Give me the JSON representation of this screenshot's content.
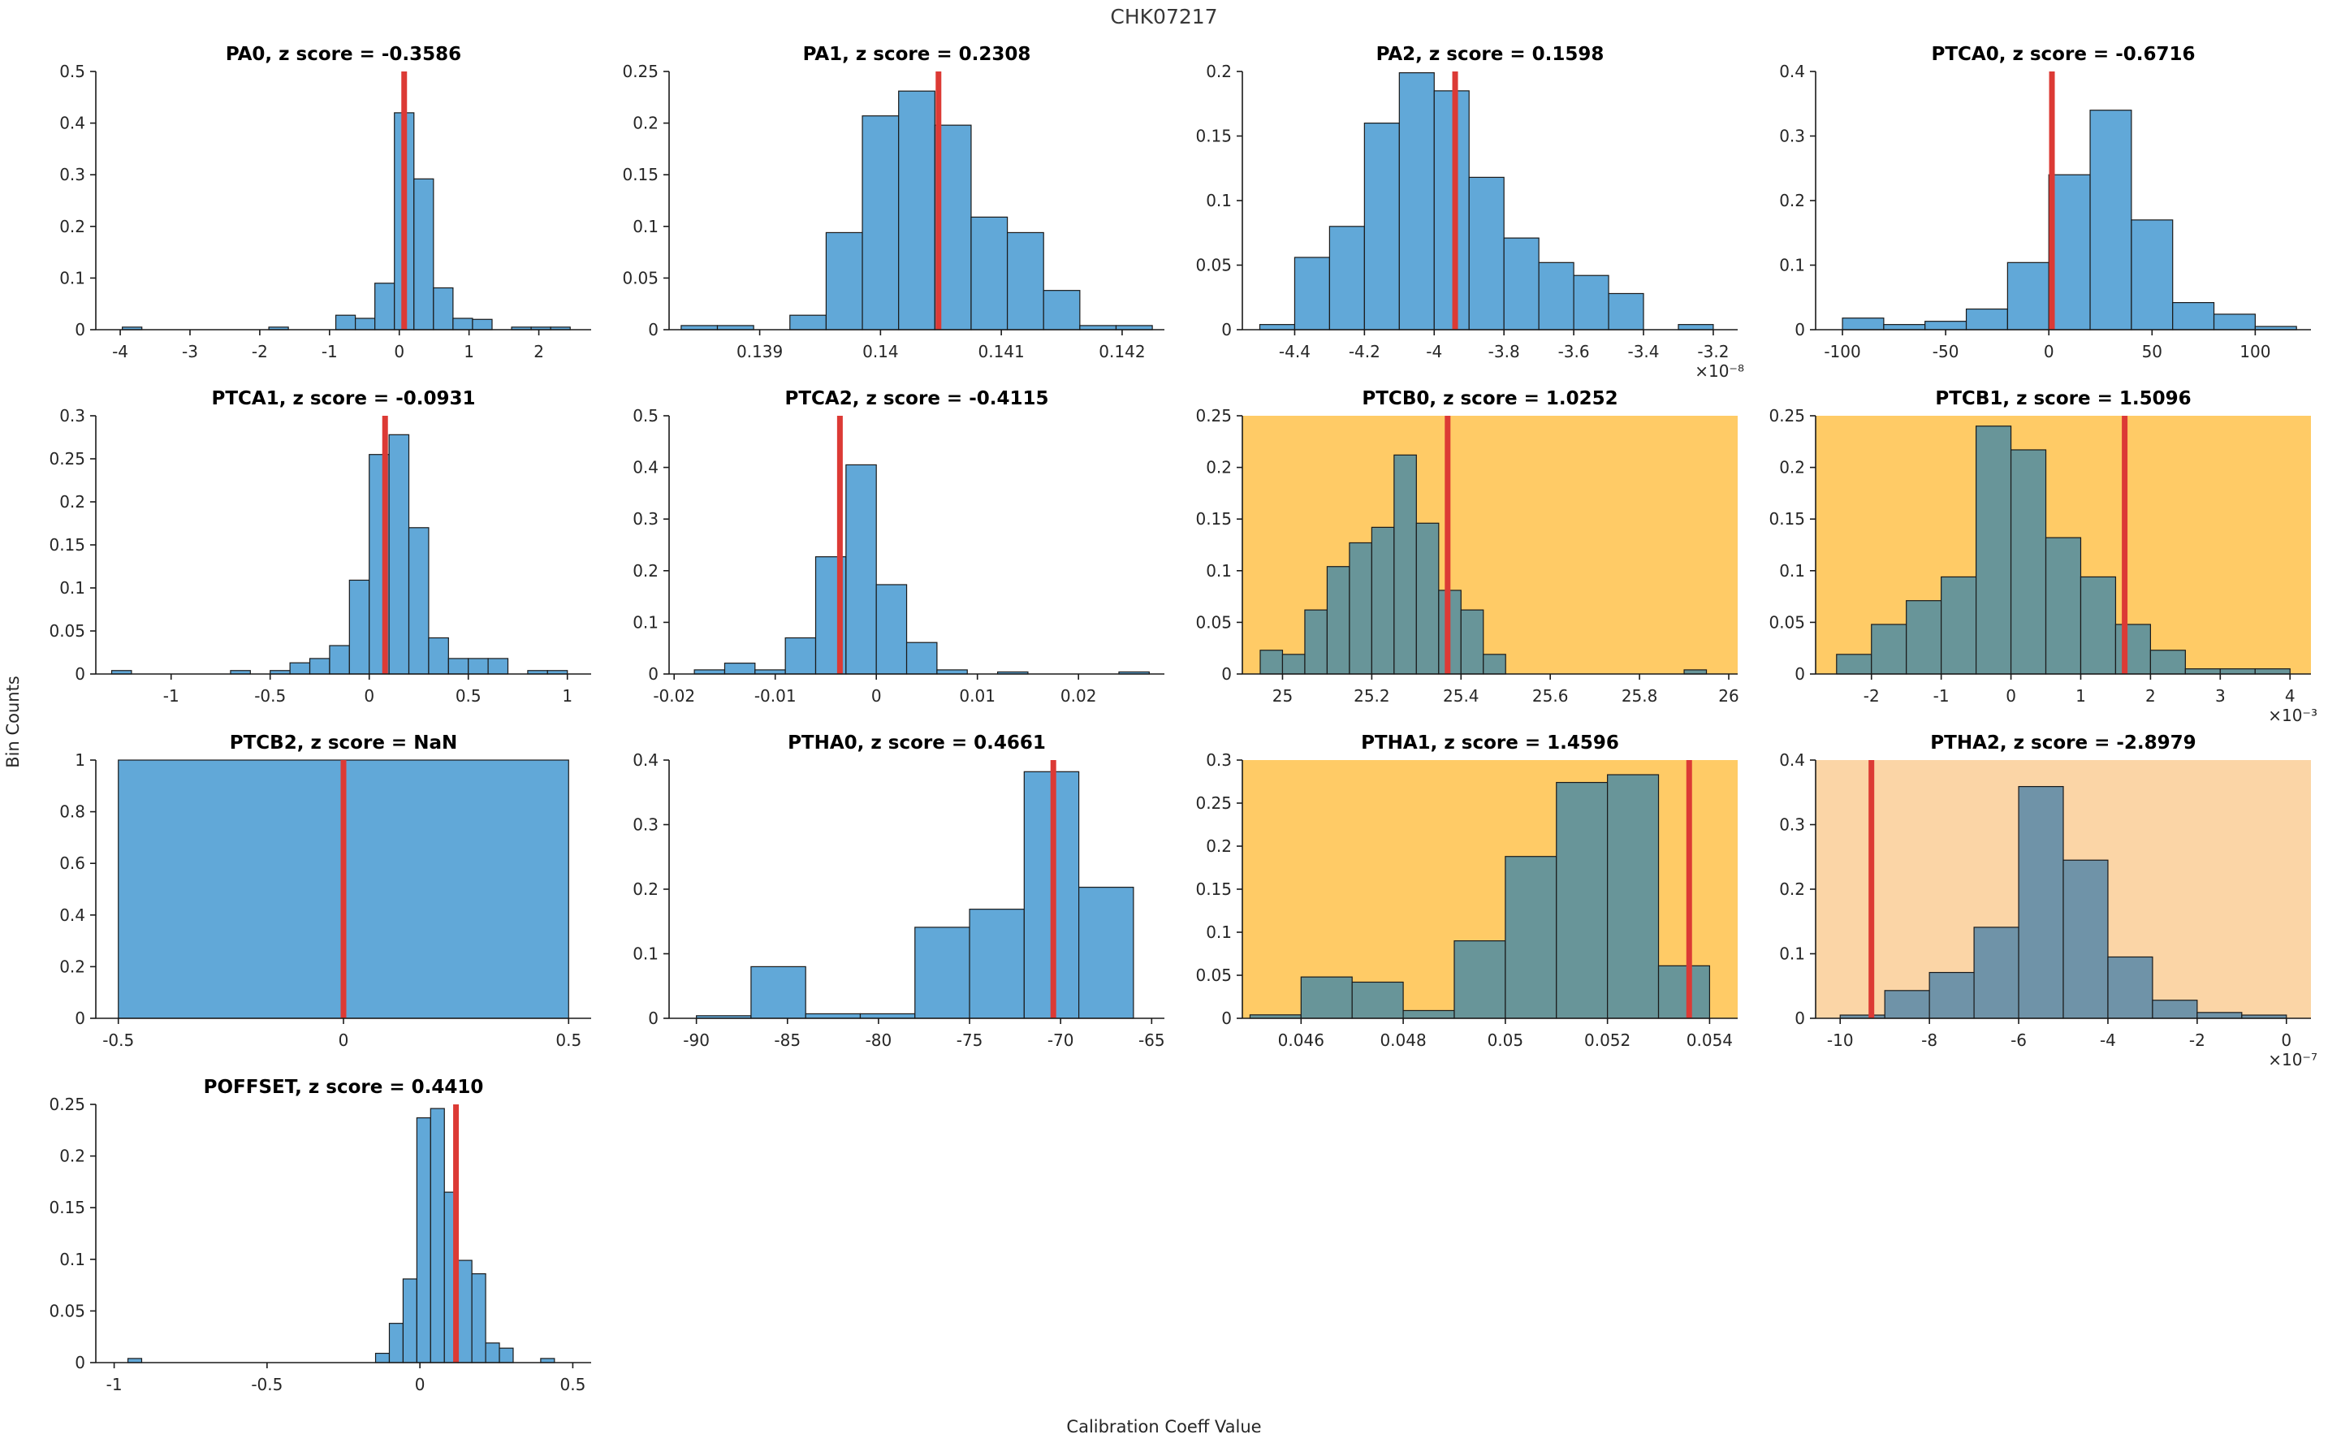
{
  "figure": {
    "title": "CHK07217",
    "ylabel": "Bin Counts",
    "xlabel": "Calibration Coeff Value"
  },
  "colors": {
    "bar_blue": "#61a8d8",
    "bar_teal": "#689599",
    "bar_steel": "#6f93a8",
    "bg_white": "#ffffff",
    "bg_orange": "#ffcb66",
    "bg_peach": "#fbd5a6",
    "red_line": "#dc3a35",
    "axis": "#1a1a1a",
    "text": "#262626",
    "title_text": "#000000"
  },
  "chart_data": [
    {
      "id": "PA0",
      "type": "bar",
      "title": "PA0, z score = -0.3586",
      "bg": "#ffffff",
      "bar_color": "#61a8d8",
      "marker_x": 0.07,
      "xlim": [
        -4.35,
        2.75
      ],
      "ylim": [
        0,
        0.5
      ],
      "multiplier": "",
      "xtick_vals": [
        -4,
        -3,
        -2,
        -1,
        0,
        1,
        2
      ],
      "xtick_labels": [
        "-4",
        "-3",
        "-2",
        "-1",
        "0",
        "1",
        "2"
      ],
      "ytick_vals": [
        0,
        0.1,
        0.2,
        0.3,
        0.4,
        0.5
      ],
      "ytick_labels": [
        "0",
        "0.1",
        "0.2",
        "0.3",
        "0.4",
        "0.5"
      ],
      "bins": [
        [
          -3.97,
          -3.69,
          0.005
        ],
        [
          -1.87,
          -1.59,
          0.005
        ],
        [
          -0.91,
          -0.63,
          0.028
        ],
        [
          -0.63,
          -0.35,
          0.022
        ],
        [
          -0.35,
          -0.07,
          0.09
        ],
        [
          -0.07,
          0.21,
          0.42
        ],
        [
          0.21,
          0.49,
          0.292
        ],
        [
          0.49,
          0.77,
          0.081
        ],
        [
          0.77,
          1.05,
          0.022
        ],
        [
          1.05,
          1.33,
          0.02
        ],
        [
          1.61,
          1.89,
          0.005
        ],
        [
          1.89,
          2.17,
          0.005
        ],
        [
          2.17,
          2.45,
          0.005
        ]
      ]
    },
    {
      "id": "PA1",
      "type": "bar",
      "title": "PA1, z score = 0.2308",
      "bg": "#ffffff",
      "bar_color": "#61a8d8",
      "marker_x": 0.14048,
      "xlim": [
        0.13825,
        0.14235
      ],
      "ylim": [
        0,
        0.25
      ],
      "multiplier": "",
      "xtick_vals": [
        0.139,
        0.14,
        0.141,
        0.142
      ],
      "xtick_labels": [
        "0.139",
        "0.14",
        "0.141",
        "0.142"
      ],
      "ytick_vals": [
        0,
        0.05,
        0.1,
        0.15,
        0.2,
        0.25
      ],
      "ytick_labels": [
        "0",
        "0.05",
        "0.1",
        "0.15",
        "0.2",
        "0.25"
      ],
      "bins": [
        [
          0.13835,
          0.13865,
          0.004
        ],
        [
          0.13865,
          0.13895,
          0.004
        ],
        [
          0.13925,
          0.13955,
          0.014
        ],
        [
          0.13955,
          0.13985,
          0.094
        ],
        [
          0.13985,
          0.14015,
          0.207
        ],
        [
          0.14015,
          0.14045,
          0.231
        ],
        [
          0.14045,
          0.14075,
          0.198
        ],
        [
          0.14075,
          0.14105,
          0.109
        ],
        [
          0.14105,
          0.14135,
          0.094
        ],
        [
          0.14135,
          0.14165,
          0.038
        ],
        [
          0.14165,
          0.14195,
          0.004
        ],
        [
          0.14195,
          0.14225,
          0.004
        ]
      ]
    },
    {
      "id": "PA2",
      "type": "bar",
      "title": "PA2, z score = 0.1598",
      "bg": "#ffffff",
      "bar_color": "#61a8d8",
      "marker_x": -3.94,
      "xlim": [
        -4.55,
        -3.13
      ],
      "ylim": [
        0,
        0.2
      ],
      "multiplier": "×10⁻⁸",
      "xtick_vals": [
        -4.4,
        -4.2,
        -4,
        -3.8,
        -3.6,
        -3.4,
        -3.2
      ],
      "xtick_labels": [
        "-4.4",
        "-4.2",
        "-4",
        "-3.8",
        "-3.6",
        "-3.4",
        "-3.2"
      ],
      "ytick_vals": [
        0,
        0.05,
        0.1,
        0.15,
        0.2
      ],
      "ytick_labels": [
        "0",
        "0.05",
        "0.1",
        "0.15",
        "0.2"
      ],
      "bins": [
        [
          -4.5,
          -4.4,
          0.004
        ],
        [
          -4.4,
          -4.3,
          0.056
        ],
        [
          -4.3,
          -4.2,
          0.08
        ],
        [
          -4.2,
          -4.1,
          0.16
        ],
        [
          -4.1,
          -4.0,
          0.199
        ],
        [
          -4.0,
          -3.9,
          0.185
        ],
        [
          -3.9,
          -3.8,
          0.118
        ],
        [
          -3.8,
          -3.7,
          0.071
        ],
        [
          -3.7,
          -3.6,
          0.052
        ],
        [
          -3.6,
          -3.5,
          0.042
        ],
        [
          -3.5,
          -3.4,
          0.028
        ],
        [
          -3.3,
          -3.2,
          0.004
        ]
      ]
    },
    {
      "id": "PTCA0",
      "type": "bar",
      "title": "PTCA0, z score = -0.6716",
      "bg": "#ffffff",
      "bar_color": "#61a8d8",
      "marker_x": 1.5,
      "xlim": [
        -113,
        127
      ],
      "ylim": [
        0,
        0.4
      ],
      "multiplier": "",
      "xtick_vals": [
        -100,
        -50,
        0,
        50,
        100
      ],
      "xtick_labels": [
        "-100",
        "-50",
        "0",
        "50",
        "100"
      ],
      "ytick_vals": [
        0,
        0.1,
        0.2,
        0.3,
        0.4
      ],
      "ytick_labels": [
        "0",
        "0.1",
        "0.2",
        "0.3",
        "0.4"
      ],
      "bins": [
        [
          -100,
          -80,
          0.018
        ],
        [
          -80,
          -60,
          0.008
        ],
        [
          -60,
          -40,
          0.013
        ],
        [
          -40,
          -20,
          0.032
        ],
        [
          -20,
          0,
          0.104
        ],
        [
          0,
          20,
          0.24
        ],
        [
          20,
          40,
          0.34
        ],
        [
          40,
          60,
          0.17
        ],
        [
          60,
          80,
          0.042
        ],
        [
          80,
          100,
          0.024
        ],
        [
          100,
          120,
          0.005
        ]
      ]
    },
    {
      "id": "PTCA1",
      "type": "bar",
      "title": "PTCA1, z score = -0.0931",
      "bg": "#ffffff",
      "bar_color": "#61a8d8",
      "marker_x": 0.08,
      "xlim": [
        -1.38,
        1.12
      ],
      "ylim": [
        0,
        0.3
      ],
      "multiplier": "",
      "xtick_vals": [
        -1,
        -0.5,
        0,
        0.5,
        1
      ],
      "xtick_labels": [
        "-1",
        "-0.5",
        "0",
        "0.5",
        "1"
      ],
      "ytick_vals": [
        0,
        0.05,
        0.1,
        0.15,
        0.2,
        0.25,
        0.3
      ],
      "ytick_labels": [
        "0",
        "0.05",
        "0.1",
        "0.15",
        "0.2",
        "0.25",
        "0.3"
      ],
      "bins": [
        [
          -1.3,
          -1.2,
          0.004
        ],
        [
          -0.7,
          -0.6,
          0.004
        ],
        [
          -0.5,
          -0.4,
          0.004
        ],
        [
          -0.4,
          -0.3,
          0.013
        ],
        [
          -0.3,
          -0.2,
          0.018
        ],
        [
          -0.2,
          -0.1,
          0.033
        ],
        [
          -0.1,
          0,
          0.109
        ],
        [
          0,
          0.1,
          0.255
        ],
        [
          0.1,
          0.2,
          0.278
        ],
        [
          0.2,
          0.3,
          0.17
        ],
        [
          0.3,
          0.4,
          0.042
        ],
        [
          0.4,
          0.5,
          0.018
        ],
        [
          0.5,
          0.6,
          0.018
        ],
        [
          0.6,
          0.7,
          0.018
        ],
        [
          0.8,
          0.9,
          0.004
        ],
        [
          0.9,
          1.0,
          0.004
        ]
      ]
    },
    {
      "id": "PTCA2",
      "type": "bar",
      "title": "PTCA2, z score = -0.4115",
      "bg": "#ffffff",
      "bar_color": "#61a8d8",
      "marker_x": -0.0036,
      "xlim": [
        -0.0205,
        0.0285
      ],
      "ylim": [
        0,
        0.5
      ],
      "multiplier": "",
      "xtick_vals": [
        -0.02,
        -0.01,
        0,
        0.01,
        0.02
      ],
      "xtick_labels": [
        "-0.02",
        "-0.01",
        "0",
        "0.01",
        "0.02"
      ],
      "ytick_vals": [
        0,
        0.1,
        0.2,
        0.3,
        0.4,
        0.5
      ],
      "ytick_labels": [
        "0",
        "0.1",
        "0.2",
        "0.3",
        "0.4",
        "0.5"
      ],
      "bins": [
        [
          -0.018,
          -0.015,
          0.008
        ],
        [
          -0.015,
          -0.012,
          0.021
        ],
        [
          -0.012,
          -0.009,
          0.008
        ],
        [
          -0.009,
          -0.006,
          0.07
        ],
        [
          -0.006,
          -0.003,
          0.227
        ],
        [
          -0.003,
          0,
          0.405
        ],
        [
          0,
          0.003,
          0.173
        ],
        [
          0.003,
          0.006,
          0.061
        ],
        [
          0.006,
          0.009,
          0.008
        ],
        [
          0.012,
          0.015,
          0.004
        ],
        [
          0.024,
          0.027,
          0.004
        ]
      ]
    },
    {
      "id": "PTCB0",
      "type": "bar",
      "title": "PTCB0, z score = 1.0252",
      "bg": "#ffcb66",
      "bar_color": "#689599",
      "marker_x": 25.37,
      "xlim": [
        24.91,
        26.02
      ],
      "ylim": [
        0,
        0.25
      ],
      "multiplier": "",
      "xtick_vals": [
        25,
        25.2,
        25.4,
        25.6,
        25.8,
        26
      ],
      "xtick_labels": [
        "25",
        "25.2",
        "25.4",
        "25.6",
        "25.8",
        "26"
      ],
      "ytick_vals": [
        0,
        0.05,
        0.1,
        0.15,
        0.2,
        0.25
      ],
      "ytick_labels": [
        "0",
        "0.05",
        "0.1",
        "0.15",
        "0.2",
        "0.25"
      ],
      "bins": [
        [
          24.95,
          25.0,
          0.023
        ],
        [
          25.0,
          25.05,
          0.019
        ],
        [
          25.05,
          25.1,
          0.062
        ],
        [
          25.1,
          25.15,
          0.104
        ],
        [
          25.15,
          25.2,
          0.127
        ],
        [
          25.2,
          25.25,
          0.142
        ],
        [
          25.25,
          25.3,
          0.212
        ],
        [
          25.3,
          25.35,
          0.146
        ],
        [
          25.35,
          25.4,
          0.081
        ],
        [
          25.4,
          25.45,
          0.062
        ],
        [
          25.45,
          25.5,
          0.019
        ],
        [
          25.9,
          25.95,
          0.004
        ]
      ]
    },
    {
      "id": "PTCB1",
      "type": "bar",
      "title": "PTCB1, z score = 1.5096",
      "bg": "#ffcb66",
      "bar_color": "#689599",
      "marker_x": 1.63,
      "xlim": [
        -2.8,
        4.3
      ],
      "ylim": [
        0,
        0.25
      ],
      "multiplier": "×10⁻³",
      "xtick_vals": [
        -2,
        -1,
        0,
        1,
        2,
        3,
        4
      ],
      "xtick_labels": [
        "-2",
        "-1",
        "0",
        "1",
        "2",
        "3",
        "4"
      ],
      "ytick_vals": [
        0,
        0.05,
        0.1,
        0.15,
        0.2,
        0.25
      ],
      "ytick_labels": [
        "0",
        "0.05",
        "0.1",
        "0.15",
        "0.2",
        "0.25"
      ],
      "bins": [
        [
          -2.5,
          -2,
          0.019
        ],
        [
          -2,
          -1.5,
          0.048
        ],
        [
          -1.5,
          -1,
          0.071
        ],
        [
          -1,
          -0.5,
          0.094
        ],
        [
          -0.5,
          0,
          0.24
        ],
        [
          0,
          0.5,
          0.217
        ],
        [
          0.5,
          1,
          0.132
        ],
        [
          1,
          1.5,
          0.094
        ],
        [
          1.5,
          2,
          0.048
        ],
        [
          2,
          2.5,
          0.023
        ],
        [
          2.5,
          3,
          0.005
        ],
        [
          3,
          3.5,
          0.005
        ],
        [
          3.5,
          4,
          0.005
        ]
      ]
    },
    {
      "id": "PTCB2",
      "type": "bar",
      "title": "PTCB2, z score = NaN",
      "bg": "#ffffff",
      "bar_color": "#61a8d8",
      "marker_x": 0,
      "xlim": [
        -0.55,
        0.55
      ],
      "ylim": [
        0,
        1
      ],
      "multiplier": "",
      "xtick_vals": [
        -0.5,
        0,
        0.5
      ],
      "xtick_labels": [
        "-0.5",
        "0",
        "0.5"
      ],
      "ytick_vals": [
        0,
        0.2,
        0.4,
        0.6,
        0.8,
        1
      ],
      "ytick_labels": [
        "0",
        "0.2",
        "0.4",
        "0.6",
        "0.8",
        "1"
      ],
      "bins": [
        [
          -0.5,
          0.5,
          1
        ]
      ]
    },
    {
      "id": "PTHA0",
      "type": "bar",
      "title": "PTHA0, z score = 0.4661",
      "bg": "#ffffff",
      "bar_color": "#61a8d8",
      "marker_x": -70.4,
      "xlim": [
        -91.5,
        -64.3
      ],
      "ylim": [
        0,
        0.4
      ],
      "multiplier": "",
      "xtick_vals": [
        -90,
        -85,
        -80,
        -75,
        -70,
        -65
      ],
      "xtick_labels": [
        "-90",
        "-85",
        "-80",
        "-75",
        "-70",
        "-65"
      ],
      "ytick_vals": [
        0,
        0.1,
        0.2,
        0.3,
        0.4
      ],
      "ytick_labels": [
        "0",
        "0.1",
        "0.2",
        "0.3",
        "0.4"
      ],
      "bins": [
        [
          -90,
          -87,
          0.004
        ],
        [
          -87,
          -84,
          0.08
        ],
        [
          -84,
          -81,
          0.007
        ],
        [
          -81,
          -78,
          0.007
        ],
        [
          -78,
          -75,
          0.141
        ],
        [
          -75,
          -72,
          0.169
        ],
        [
          -72,
          -69,
          0.382
        ],
        [
          -69,
          -66,
          0.203
        ]
      ]
    },
    {
      "id": "PTHA1",
      "type": "bar",
      "title": "PTHA1, z score = 1.4596",
      "bg": "#ffcb66",
      "bar_color": "#689599",
      "marker_x": 0.0536,
      "xlim": [
        0.04485,
        0.05455
      ],
      "ylim": [
        0,
        0.3
      ],
      "multiplier": "",
      "xtick_vals": [
        0.046,
        0.048,
        0.05,
        0.052,
        0.054
      ],
      "xtick_labels": [
        "0.046",
        "0.048",
        "0.05",
        "0.052",
        "0.054"
      ],
      "ytick_vals": [
        0,
        0.05,
        0.1,
        0.15,
        0.2,
        0.25,
        0.3
      ],
      "ytick_labels": [
        "0",
        "0.05",
        "0.1",
        "0.15",
        "0.2",
        "0.25",
        "0.3"
      ],
      "bins": [
        [
          0.045,
          0.046,
          0.004
        ],
        [
          0.046,
          0.047,
          0.048
        ],
        [
          0.047,
          0.048,
          0.042
        ],
        [
          0.048,
          0.049,
          0.009
        ],
        [
          0.049,
          0.05,
          0.09
        ],
        [
          0.05,
          0.051,
          0.188
        ],
        [
          0.051,
          0.052,
          0.274
        ],
        [
          0.052,
          0.053,
          0.283
        ],
        [
          0.053,
          0.054,
          0.061
        ]
      ]
    },
    {
      "id": "PTHA2",
      "type": "bar",
      "title": "PTHA2, z score = -2.8979",
      "bg": "#fbd5a6",
      "bar_color": "#6f93a8",
      "marker_x": -9.3,
      "xlim": [
        -10.55,
        0.55
      ],
      "ylim": [
        0,
        0.4
      ],
      "multiplier": "×10⁻⁷",
      "xtick_vals": [
        -10,
        -8,
        -6,
        -4,
        -2,
        0
      ],
      "xtick_labels": [
        "-10",
        "-8",
        "-6",
        "-4",
        "-2",
        "0"
      ],
      "ytick_vals": [
        0,
        0.1,
        0.2,
        0.3,
        0.4
      ],
      "ytick_labels": [
        "0",
        "0.1",
        "0.2",
        "0.3",
        "0.4"
      ],
      "bins": [
        [
          -10,
          -9,
          0.005
        ],
        [
          -9,
          -8,
          0.043
        ],
        [
          -8,
          -7,
          0.071
        ],
        [
          -7,
          -6,
          0.141
        ],
        [
          -6,
          -5,
          0.359
        ],
        [
          -5,
          -4,
          0.245
        ],
        [
          -4,
          -3,
          0.095
        ],
        [
          -3,
          -2,
          0.028
        ],
        [
          -2,
          -1,
          0.009
        ],
        [
          -1,
          0,
          0.005
        ]
      ]
    },
    {
      "id": "POFFSET",
      "type": "bar",
      "title": "POFFSET, z score = 0.4410",
      "bg": "#ffffff",
      "bar_color": "#61a8d8",
      "marker_x": 0.118,
      "xlim": [
        -1.06,
        0.56
      ],
      "ylim": [
        0,
        0.25
      ],
      "multiplier": "",
      "xtick_vals": [
        -1,
        -0.5,
        0,
        0.5
      ],
      "xtick_labels": [
        "-1",
        "-0.5",
        "0",
        "0.5"
      ],
      "ytick_vals": [
        0,
        0.05,
        0.1,
        0.15,
        0.2,
        0.25
      ],
      "ytick_labels": [
        "0",
        "0.05",
        "0.1",
        "0.15",
        "0.2",
        "0.25"
      ],
      "bins": [
        [
          -0.955,
          -0.91,
          0.004
        ],
        [
          -0.145,
          -0.1,
          0.009
        ],
        [
          -0.1,
          -0.055,
          0.038
        ],
        [
          -0.055,
          -0.01,
          0.081
        ],
        [
          -0.01,
          0.035,
          0.237
        ],
        [
          0.035,
          0.08,
          0.246
        ],
        [
          0.08,
          0.125,
          0.165
        ],
        [
          0.125,
          0.17,
          0.099
        ],
        [
          0.17,
          0.215,
          0.086
        ],
        [
          0.215,
          0.26,
          0.019
        ],
        [
          0.26,
          0.305,
          0.014
        ],
        [
          0.395,
          0.44,
          0.004
        ]
      ]
    }
  ]
}
